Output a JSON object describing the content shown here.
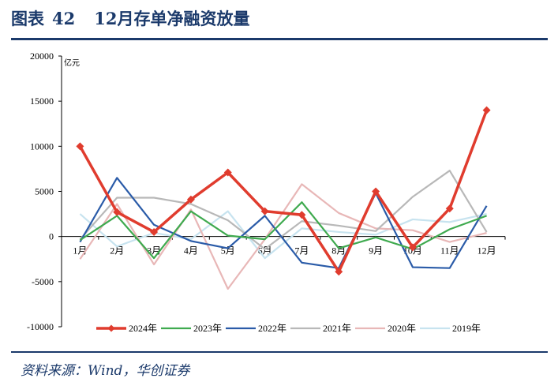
{
  "header": {
    "figure_label": "图表",
    "figure_number": "42",
    "title": "12月存单净融资放量"
  },
  "source_text": "资料来源：Wind，华创证券",
  "colors": {
    "title": "#1b3a6b",
    "rule": "#1b3a6b"
  },
  "chart_data": {
    "type": "line",
    "title": "12月存单净融资放量",
    "unit_label": "亿元",
    "categories": [
      "1月",
      "2月",
      "3月",
      "4月",
      "5月",
      "6月",
      "7月",
      "8月",
      "9月",
      "10月",
      "11月",
      "12月"
    ],
    "ylim": [
      -10000,
      20000
    ],
    "yticks": [
      -10000,
      -5000,
      0,
      5000,
      10000,
      15000,
      20000
    ],
    "legend_position": "bottom",
    "series": [
      {
        "name": "2024年",
        "color": "#e03c2e",
        "marker": "diamond",
        "values": [
          10000,
          2700,
          500,
          4100,
          7100,
          2800,
          2400,
          -3900,
          5000,
          -1200,
          3100,
          14000
        ]
      },
      {
        "name": "2023年",
        "color": "#3faa4f",
        "values": [
          -400,
          2300,
          -2400,
          2800,
          100,
          -300,
          3800,
          -1300,
          -100,
          -1400,
          800,
          2300
        ]
      },
      {
        "name": "2022年",
        "color": "#2a5ba8",
        "values": [
          -600,
          6500,
          1300,
          -500,
          -1300,
          2300,
          -2900,
          -3500,
          4800,
          -3400,
          -3500,
          3400
        ]
      },
      {
        "name": "2021年",
        "color": "#b8b8b8",
        "values": [
          -300,
          4300,
          4300,
          3600,
          1800,
          -1400,
          1700,
          1200,
          600,
          4400,
          7300,
          500
        ]
      },
      {
        "name": "2020年",
        "color": "#e8b7b7",
        "values": [
          -2500,
          3600,
          -3100,
          3000,
          -5800,
          -300,
          5800,
          2600,
          900,
          700,
          -600,
          400
        ]
      },
      {
        "name": "2019年",
        "color": "#c7e3ef",
        "values": [
          2500,
          -1100,
          400,
          -300,
          2800,
          -2400,
          900,
          500,
          200,
          1900,
          1600,
          2500
        ]
      }
    ]
  }
}
